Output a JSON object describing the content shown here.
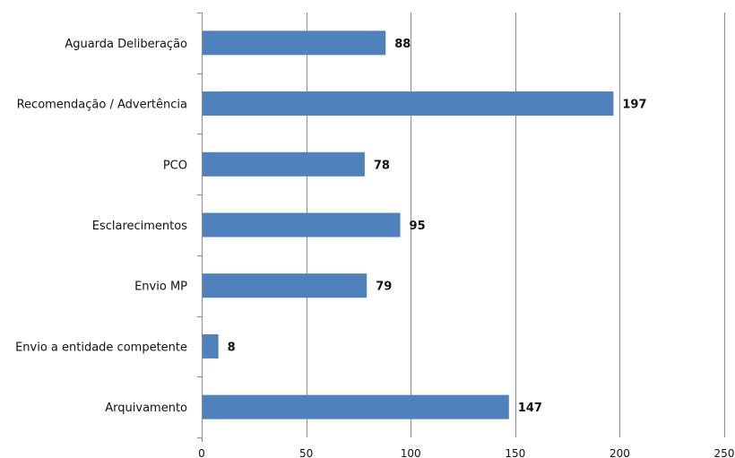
{
  "chart_data": {
    "type": "bar",
    "orientation": "horizontal",
    "categories": [
      "Aguarda Deliberação",
      "Recomendação / Advertência",
      "PCO",
      "Esclarecimentos",
      "Envio MP",
      "Envio a entidade competente",
      "Arquivamento"
    ],
    "values": [
      88,
      197,
      78,
      95,
      79,
      8,
      147
    ],
    "data_labels": [
      "88",
      "197",
      "78",
      "95",
      "79",
      "8",
      "147"
    ],
    "xlim": [
      0,
      250
    ],
    "x_ticks": [
      0,
      50,
      100,
      150,
      200,
      250
    ],
    "x_tick_labels": [
      "0",
      "50",
      "100",
      "150",
      "200",
      "250"
    ],
    "title": "",
    "xlabel": "",
    "ylabel": "",
    "grid": "vertical",
    "legend": "none",
    "bar_color": "#4f81bd",
    "grid_color": "#8c8c8c",
    "axis_color": "#8c8c8c"
  }
}
